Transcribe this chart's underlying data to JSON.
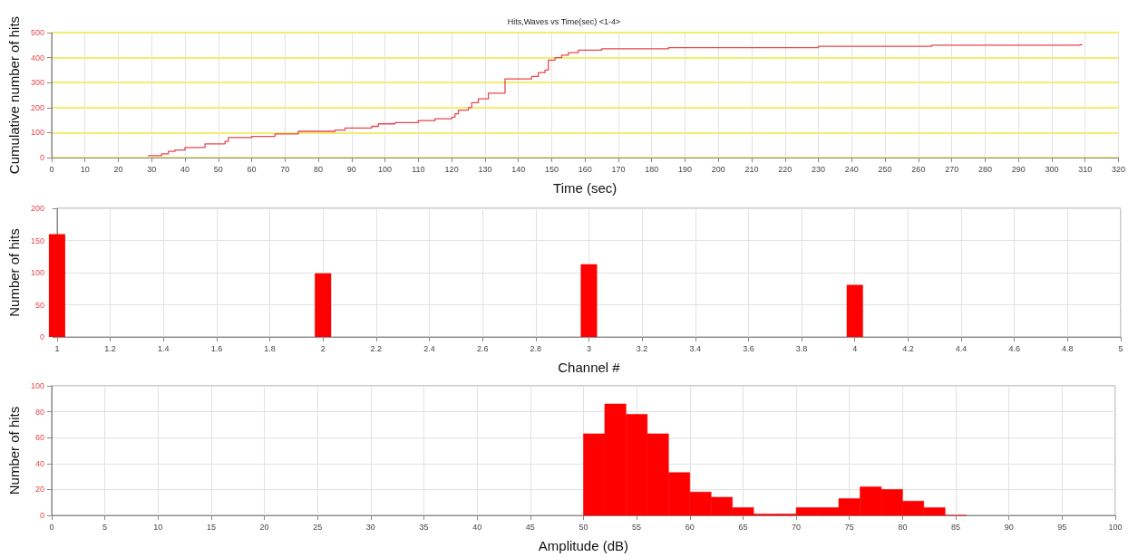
{
  "chart_data": [
    {
      "type": "step",
      "title": "Hits,Waves vs Time(sec) <1-4>",
      "xlabel": "Time (sec)",
      "ylabel": "Cumulative number of hits",
      "series": [
        {
          "color": "#e8474c",
          "x": [
            29,
            33,
            35,
            37,
            40,
            46,
            52,
            53,
            60,
            67,
            74,
            85,
            88,
            96,
            98,
            103,
            110,
            115,
            120,
            121,
            122,
            125,
            126,
            128,
            131,
            136,
            144,
            146,
            148,
            149,
            151,
            153,
            155,
            158,
            165,
            185,
            230,
            264,
            308,
            309
          ],
          "values": [
            8,
            15,
            25,
            30,
            40,
            55,
            65,
            80,
            85,
            95,
            105,
            110,
            118,
            125,
            135,
            140,
            148,
            155,
            162,
            175,
            190,
            200,
            220,
            235,
            258,
            315,
            325,
            340,
            350,
            390,
            400,
            410,
            420,
            430,
            435,
            440,
            445,
            450,
            452,
            452
          ]
        }
      ],
      "xlim": [
        0,
        320
      ],
      "xticks": [
        0,
        10,
        20,
        30,
        40,
        50,
        60,
        70,
        80,
        90,
        100,
        110,
        120,
        130,
        140,
        150,
        160,
        170,
        180,
        190,
        200,
        210,
        220,
        230,
        240,
        250,
        260,
        270,
        280,
        290,
        300,
        310,
        320
      ],
      "ylim": [
        0,
        500
      ],
      "yticks": [
        0,
        100,
        200,
        300,
        400,
        500
      ],
      "grid": true,
      "marker": "none",
      "line_style": "solid"
    },
    {
      "type": "bar",
      "xlabel": "Channel #",
      "ylabel": "Number of hits",
      "x": [
        1,
        2,
        3,
        4
      ],
      "values": [
        160,
        99,
        113,
        81
      ],
      "color": "#ff0000",
      "xlim": [
        1,
        5
      ],
      "xticks": [
        1,
        1.2,
        1.4,
        1.6,
        1.8,
        2,
        2.2,
        2.4,
        2.6,
        2.8,
        3,
        3.2,
        3.4,
        3.6,
        3.8,
        4,
        4.2,
        4.4,
        4.6,
        4.8,
        5
      ],
      "ylim": [
        0,
        200
      ],
      "yticks": [
        0,
        50,
        100,
        150,
        200
      ],
      "grid": true
    },
    {
      "type": "histogram",
      "xlabel": "Amplitude (dB)",
      "ylabel": "Number of hits",
      "bins": [
        50,
        52,
        54,
        56,
        58,
        60,
        62,
        64,
        66,
        68,
        70,
        72,
        74,
        76,
        78,
        80,
        82,
        84,
        86
      ],
      "values": [
        63,
        86,
        78,
        63,
        33,
        18,
        14,
        6,
        1,
        1,
        6,
        6,
        13,
        22,
        20,
        11,
        6,
        0
      ],
      "color": "#ff0000",
      "xlim": [
        0,
        100
      ],
      "xticks": [
        0,
        5,
        10,
        15,
        20,
        25,
        30,
        35,
        40,
        45,
        50,
        55,
        60,
        65,
        70,
        75,
        80,
        85,
        90,
        95,
        100
      ],
      "ylim": [
        0,
        100
      ],
      "yticks": [
        0,
        20,
        40,
        60,
        80,
        100
      ],
      "grid": true
    }
  ]
}
